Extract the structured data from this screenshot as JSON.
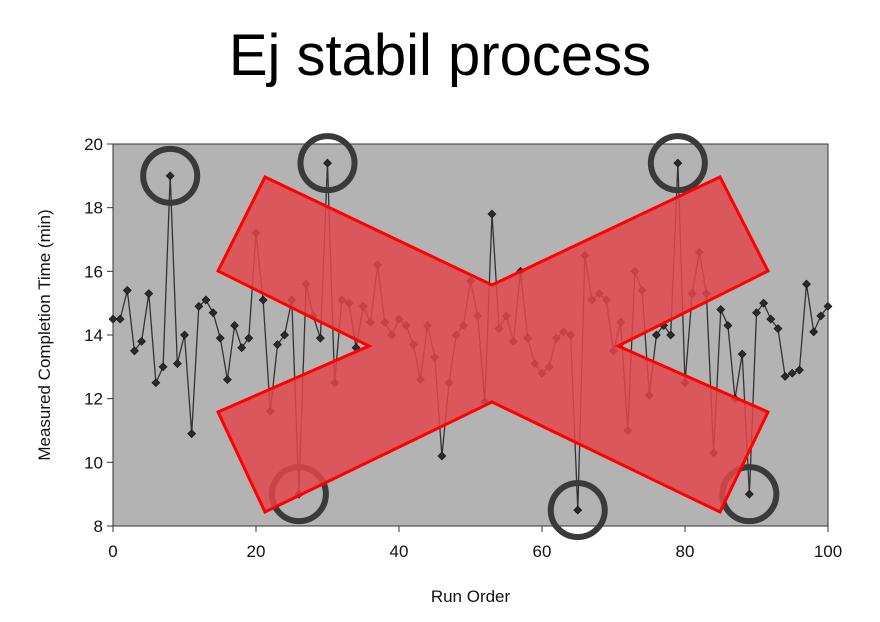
{
  "slide_title": "Ej stabil process",
  "chart_data": {
    "type": "line",
    "title": "",
    "xlabel": "Run Order",
    "ylabel": "Measured Completion Time (min)",
    "xlim": [
      0,
      100
    ],
    "ylim": [
      8,
      20
    ],
    "x_ticks": [
      0,
      20,
      40,
      60,
      80,
      100
    ],
    "y_ticks": [
      8,
      10,
      12,
      14,
      16,
      18,
      20
    ],
    "grid": false,
    "background_color": "#b3b3b3",
    "line_color": "#333333",
    "series": [
      {
        "x": [
          0,
          1,
          2,
          3,
          4,
          5,
          6,
          7,
          8,
          9,
          10,
          11,
          12,
          13,
          14,
          15,
          16,
          17,
          18,
          19,
          20,
          21,
          22,
          23,
          24,
          25,
          26,
          27,
          28,
          29,
          30,
          31,
          32,
          33,
          34,
          35,
          36,
          37,
          38,
          39,
          40,
          41,
          42,
          43,
          44,
          45,
          46,
          47,
          48,
          49,
          50,
          51,
          52,
          53,
          54,
          55,
          56,
          57,
          58,
          59,
          60,
          61,
          62,
          63,
          64,
          65,
          66,
          67,
          68,
          69,
          70,
          71,
          72,
          73,
          74,
          75,
          76,
          77,
          78,
          79,
          80,
          81,
          82,
          83,
          84,
          85,
          86,
          87,
          88,
          89,
          90,
          91,
          92,
          93,
          94,
          95,
          96,
          97,
          98,
          99,
          100
        ],
        "y": [
          14.5,
          14.5,
          15.4,
          13.5,
          13.8,
          15.3,
          12.5,
          13.0,
          19.0,
          13.1,
          14.0,
          10.9,
          14.9,
          15.1,
          14.7,
          13.9,
          12.6,
          14.3,
          13.6,
          13.9,
          17.2,
          15.1,
          11.6,
          13.7,
          14.0,
          15.1,
          9.0,
          15.6,
          14.6,
          13.9,
          19.4,
          12.5,
          15.1,
          15.0,
          13.6,
          14.9,
          14.4,
          16.2,
          14.4,
          14.0,
          14.5,
          14.3,
          13.7,
          12.6,
          14.3,
          13.3,
          10.2,
          12.5,
          14.0,
          14.3,
          15.7,
          14.6,
          11.9,
          17.8,
          14.2,
          14.6,
          13.8,
          16.0,
          13.9,
          13.1,
          12.8,
          13.0,
          13.9,
          14.1,
          14.0,
          8.5,
          16.5,
          15.1,
          15.3,
          15.1,
          13.5,
          14.4,
          11.0,
          16.0,
          15.4,
          12.1,
          14.0,
          14.3,
          14.0,
          19.4,
          12.5,
          15.3,
          16.6,
          15.3,
          10.3,
          14.8,
          14.3,
          12.0,
          13.4,
          9.0,
          14.7,
          15.0,
          14.5,
          14.2,
          12.7,
          12.8,
          12.9,
          15.6,
          14.1,
          14.6,
          14.9
        ]
      }
    ],
    "highlight_circles_x": [
      8,
      26,
      30,
      65,
      79,
      89
    ],
    "overlay": {
      "shape": "cross-out X",
      "fill_color": "#e0474c",
      "stroke_color": "#ff0000"
    }
  }
}
